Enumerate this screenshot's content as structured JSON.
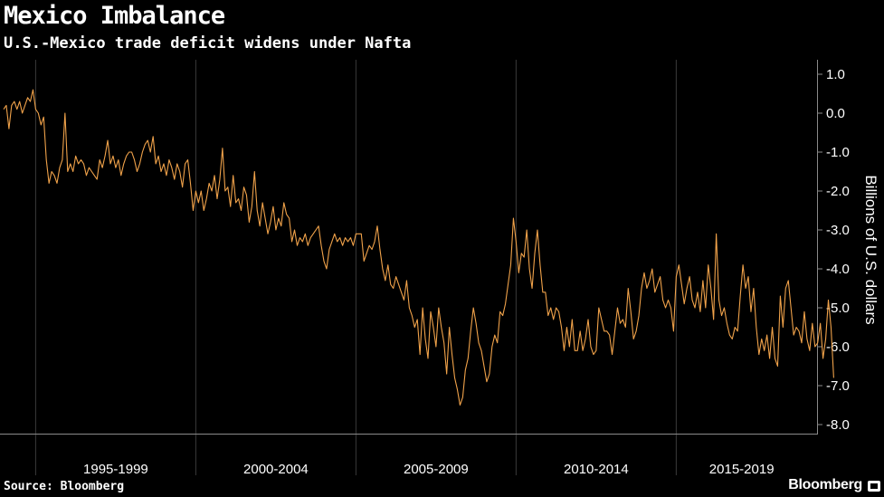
{
  "header": {
    "title": "Mexico Imbalance",
    "subtitle": "U.S.-Mexico trade deficit widens under Nafta"
  },
  "footer": {
    "source": "Source: Bloomberg",
    "brand": "Bloomberg"
  },
  "colors": {
    "background": "#000000",
    "line": "#f0a24a",
    "grid": "#3a3a3a",
    "text": "#ffffff"
  },
  "chart_data": {
    "type": "line",
    "title": "Mexico Imbalance",
    "subtitle": "U.S.-Mexico trade deficit widens under Nafta",
    "ylabel": "Billions of U.S. dollars",
    "xlabel": "",
    "ylim": [
      -8.0,
      1.0
    ],
    "yticks": [
      "1.0",
      "0.0",
      "-1.0",
      "-2.0",
      "-3.0",
      "-4.0",
      "-5.0",
      "-6.0",
      "-7.0",
      "-8.0"
    ],
    "x_period_labels": [
      "1995-1999",
      "2000-2004",
      "2005-2009",
      "2010-2014",
      "2015-2019"
    ],
    "x_start": "1994-01",
    "x_end": "2018-12",
    "frequency": "monthly",
    "grid": "vertical",
    "legend": "none",
    "series": [
      {
        "values": [
          0.1,
          0.2,
          -0.4,
          0.2,
          0.3,
          0.1,
          0.3,
          0.0,
          0.2,
          0.4,
          0.3,
          0.6,
          0.1,
          0.0,
          -0.3,
          -0.1,
          -1.2,
          -1.8,
          -1.5,
          -1.6,
          -1.8,
          -1.4,
          -1.2,
          0.0,
          -1.5,
          -1.3,
          -1.5,
          -1.1,
          -1.3,
          -1.2,
          -1.3,
          -1.6,
          -1.4,
          -1.5,
          -1.6,
          -1.7,
          -1.2,
          -1.4,
          -1.1,
          -0.7,
          -1.3,
          -1.1,
          -1.4,
          -1.2,
          -1.6,
          -1.3,
          -1.1,
          -1.0,
          -1.0,
          -1.2,
          -1.5,
          -1.3,
          -1.0,
          -0.8,
          -0.7,
          -1.0,
          -0.6,
          -1.3,
          -1.1,
          -1.5,
          -1.3,
          -1.6,
          -1.2,
          -1.4,
          -1.7,
          -1.3,
          -1.5,
          -1.9,
          -1.3,
          -1.2,
          -1.8,
          -2.5,
          -2.0,
          -2.3,
          -2.0,
          -2.5,
          -2.2,
          -1.8,
          -2.0,
          -1.6,
          -2.2,
          -1.7,
          -0.9,
          -2.0,
          -1.9,
          -2.4,
          -1.6,
          -2.3,
          -2.2,
          -2.5,
          -1.9,
          -2.1,
          -2.8,
          -2.4,
          -1.5,
          -2.5,
          -2.9,
          -2.3,
          -2.7,
          -3.1,
          -2.8,
          -2.4,
          -3.0,
          -2.7,
          -2.9,
          -2.3,
          -2.6,
          -2.7,
          -3.3,
          -3.0,
          -3.4,
          -3.2,
          -3.3,
          -3.1,
          -3.4,
          -3.2,
          -3.1,
          -3.0,
          -2.9,
          -3.4,
          -3.8,
          -4.0,
          -3.5,
          -3.3,
          -3.1,
          -3.3,
          -3.2,
          -3.4,
          -3.2,
          -3.3,
          -3.2,
          -3.4,
          -3.1,
          -3.1,
          -3.1,
          -3.8,
          -3.6,
          -3.4,
          -3.5,
          -3.3,
          -2.9,
          -3.5,
          -4.0,
          -4.3,
          -3.9,
          -4.4,
          -4.5,
          -4.2,
          -4.4,
          -4.6,
          -4.8,
          -4.3,
          -5.0,
          -5.2,
          -5.5,
          -5.3,
          -6.2,
          -5.0,
          -5.8,
          -6.3,
          -5.1,
          -5.5,
          -6.0,
          -5.0,
          -5.5,
          -5.9,
          -6.7,
          -5.5,
          -6.2,
          -6.8,
          -7.1,
          -7.5,
          -7.3,
          -6.6,
          -6.3,
          -5.6,
          -5.0,
          -5.4,
          -5.9,
          -6.1,
          -6.5,
          -6.9,
          -6.7,
          -6.0,
          -5.7,
          -5.9,
          -5.1,
          -5.2,
          -4.9,
          -4.4,
          -3.9,
          -2.7,
          -3.3,
          -4.1,
          -3.6,
          -3.7,
          -3.0,
          -4.0,
          -4.5,
          -3.6,
          -3.0,
          -3.9,
          -4.6,
          -4.6,
          -5.2,
          -5.0,
          -5.3,
          -5.0,
          -5.1,
          -5.5,
          -6.1,
          -5.5,
          -6.0,
          -5.3,
          -6.1,
          -6.1,
          -5.6,
          -6.1,
          -5.8,
          -5.3,
          -6.0,
          -6.2,
          -6.1,
          -5.0,
          -5.3,
          -5.6,
          -5.6,
          -5.7,
          -6.2,
          -5.6,
          -5.0,
          -5.4,
          -5.3,
          -5.5,
          -4.5,
          -5.1,
          -5.8,
          -5.6,
          -5.2,
          -4.5,
          -4.1,
          -4.5,
          -4.3,
          -4.0,
          -4.6,
          -4.4,
          -4.2,
          -4.8,
          -5.0,
          -4.8,
          -5.0,
          -5.6,
          -4.2,
          -3.9,
          -4.4,
          -4.9,
          -4.5,
          -4.2,
          -4.8,
          -5.0,
          -4.6,
          -5.1,
          -4.3,
          -5.0,
          -3.9,
          -4.5,
          -5.3,
          -3.1,
          -4.8,
          -5.2,
          -5.0,
          -5.4,
          -5.7,
          -5.8,
          -5.5,
          -5.6,
          -4.7,
          -3.9,
          -4.5,
          -4.2,
          -5.1,
          -4.5,
          -5.5,
          -6.2,
          -5.8,
          -6.1,
          -5.7,
          -6.3,
          -5.5,
          -6.3,
          -6.5,
          -4.7,
          -5.5,
          -4.5,
          -4.3,
          -5.0,
          -5.7,
          -5.5,
          -5.6,
          -5.9,
          -5.1,
          -5.8,
          -6.1,
          -5.4,
          -6.0,
          -5.9,
          -5.4,
          -6.3,
          -5.8,
          -4.8,
          -5.5,
          -6.8
        ]
      }
    ]
  }
}
